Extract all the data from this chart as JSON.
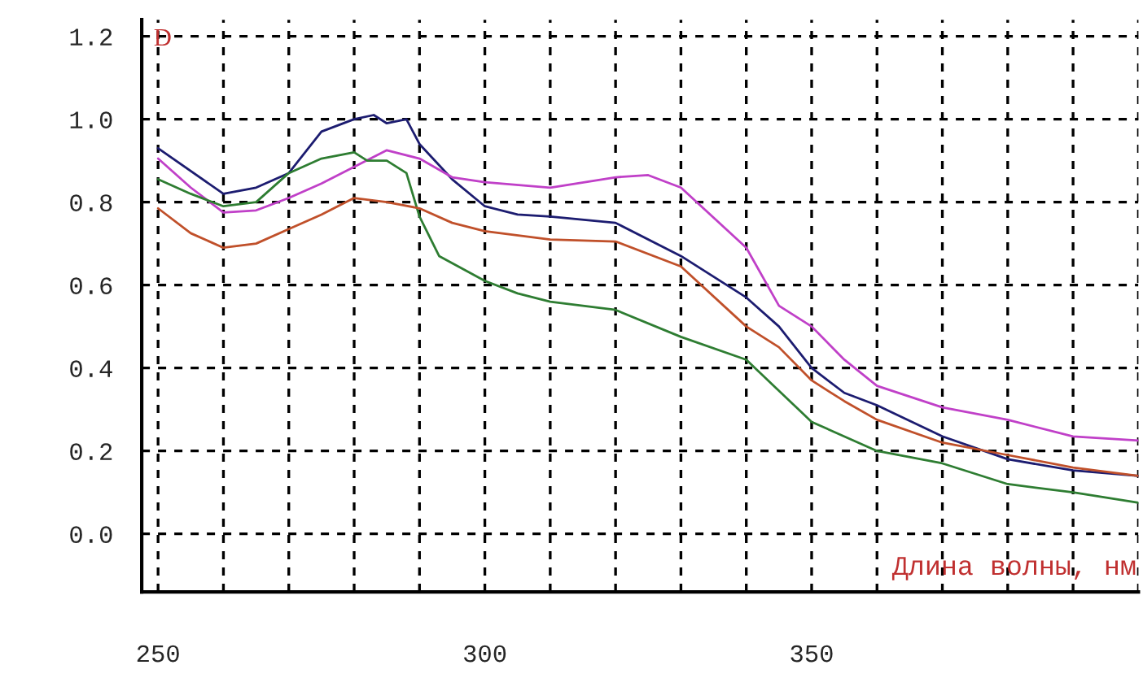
{
  "chart_data": {
    "type": "line",
    "title": "D",
    "xlabel": "Длина волны, нм",
    "xlim": [
      247.5,
      400
    ],
    "ylim": [
      -0.14,
      1.24
    ],
    "xticks": [
      250,
      {
        "value": 260,
        "label": null
      },
      {
        "value": 270,
        "label": null
      },
      {
        "value": 280,
        "label": null
      },
      {
        "value": 290,
        "label": null
      },
      300,
      {
        "value": 310,
        "label": null
      },
      {
        "value": 320,
        "label": null
      },
      {
        "value": 330,
        "label": null
      },
      {
        "value": 340,
        "label": null
      },
      350,
      {
        "value": 360,
        "label": null
      },
      {
        "value": 370,
        "label": null
      },
      {
        "value": 380,
        "label": null
      },
      {
        "value": 390,
        "label": null
      },
      {
        "value": 400,
        "label": null
      }
    ],
    "yticks": [
      {
        "value": 0,
        "label": "0.0"
      },
      0.2,
      0.4,
      0.6,
      0.8,
      {
        "value": 1,
        "label": "1.0"
      },
      1.2
    ],
    "grid": true,
    "line_style": "solid",
    "marker": "none",
    "series": [
      {
        "color": "#1c1c70",
        "x": [
          250,
          260,
          265,
          270,
          275,
          280,
          283,
          285,
          288,
          290,
          295,
          300,
          305,
          310,
          320,
          330,
          340,
          345,
          350,
          355,
          360,
          370,
          380,
          390,
          400
        ],
        "values": [
          0.93,
          0.82,
          0.835,
          0.87,
          0.97,
          1.0,
          1.01,
          0.99,
          1.0,
          0.94,
          0.855,
          0.79,
          0.77,
          0.765,
          0.75,
          0.67,
          0.57,
          0.5,
          0.4,
          0.34,
          0.31,
          0.235,
          0.18,
          0.153,
          0.14
        ]
      },
      {
        "color": "#c040c8",
        "x": [
          250,
          255,
          260,
          265,
          270,
          275,
          280,
          285,
          290,
          295,
          300,
          310,
          320,
          325,
          330,
          340,
          345,
          350,
          355,
          360,
          370,
          380,
          390,
          400
        ],
        "values": [
          0.905,
          0.835,
          0.775,
          0.78,
          0.81,
          0.845,
          0.885,
          0.925,
          0.905,
          0.86,
          0.848,
          0.835,
          0.86,
          0.865,
          0.835,
          0.69,
          0.55,
          0.5,
          0.42,
          0.357,
          0.305,
          0.275,
          0.235,
          0.225
        ]
      },
      {
        "color": "#2e7d32",
        "x": [
          250,
          255,
          260,
          265,
          270,
          275,
          280,
          282,
          285,
          288,
          290,
          293,
          300,
          305,
          310,
          320,
          330,
          340,
          345,
          350,
          360,
          370,
          380,
          390,
          400
        ],
        "values": [
          0.855,
          0.82,
          0.79,
          0.8,
          0.87,
          0.905,
          0.92,
          0.9,
          0.9,
          0.87,
          0.765,
          0.67,
          0.61,
          0.58,
          0.56,
          0.54,
          0.475,
          0.42,
          0.345,
          0.27,
          0.2,
          0.17,
          0.12,
          0.1,
          0.075
        ]
      },
      {
        "color": "#c0502a",
        "x": [
          250,
          255,
          260,
          265,
          270,
          275,
          280,
          285,
          290,
          295,
          300,
          310,
          320,
          330,
          340,
          345,
          350,
          355,
          360,
          370,
          380,
          390,
          400
        ],
        "values": [
          0.785,
          0.725,
          0.69,
          0.7,
          0.735,
          0.77,
          0.81,
          0.8,
          0.785,
          0.75,
          0.73,
          0.71,
          0.705,
          0.645,
          0.5,
          0.45,
          0.37,
          0.32,
          0.275,
          0.22,
          0.19,
          0.16,
          0.14
        ]
      }
    ]
  }
}
